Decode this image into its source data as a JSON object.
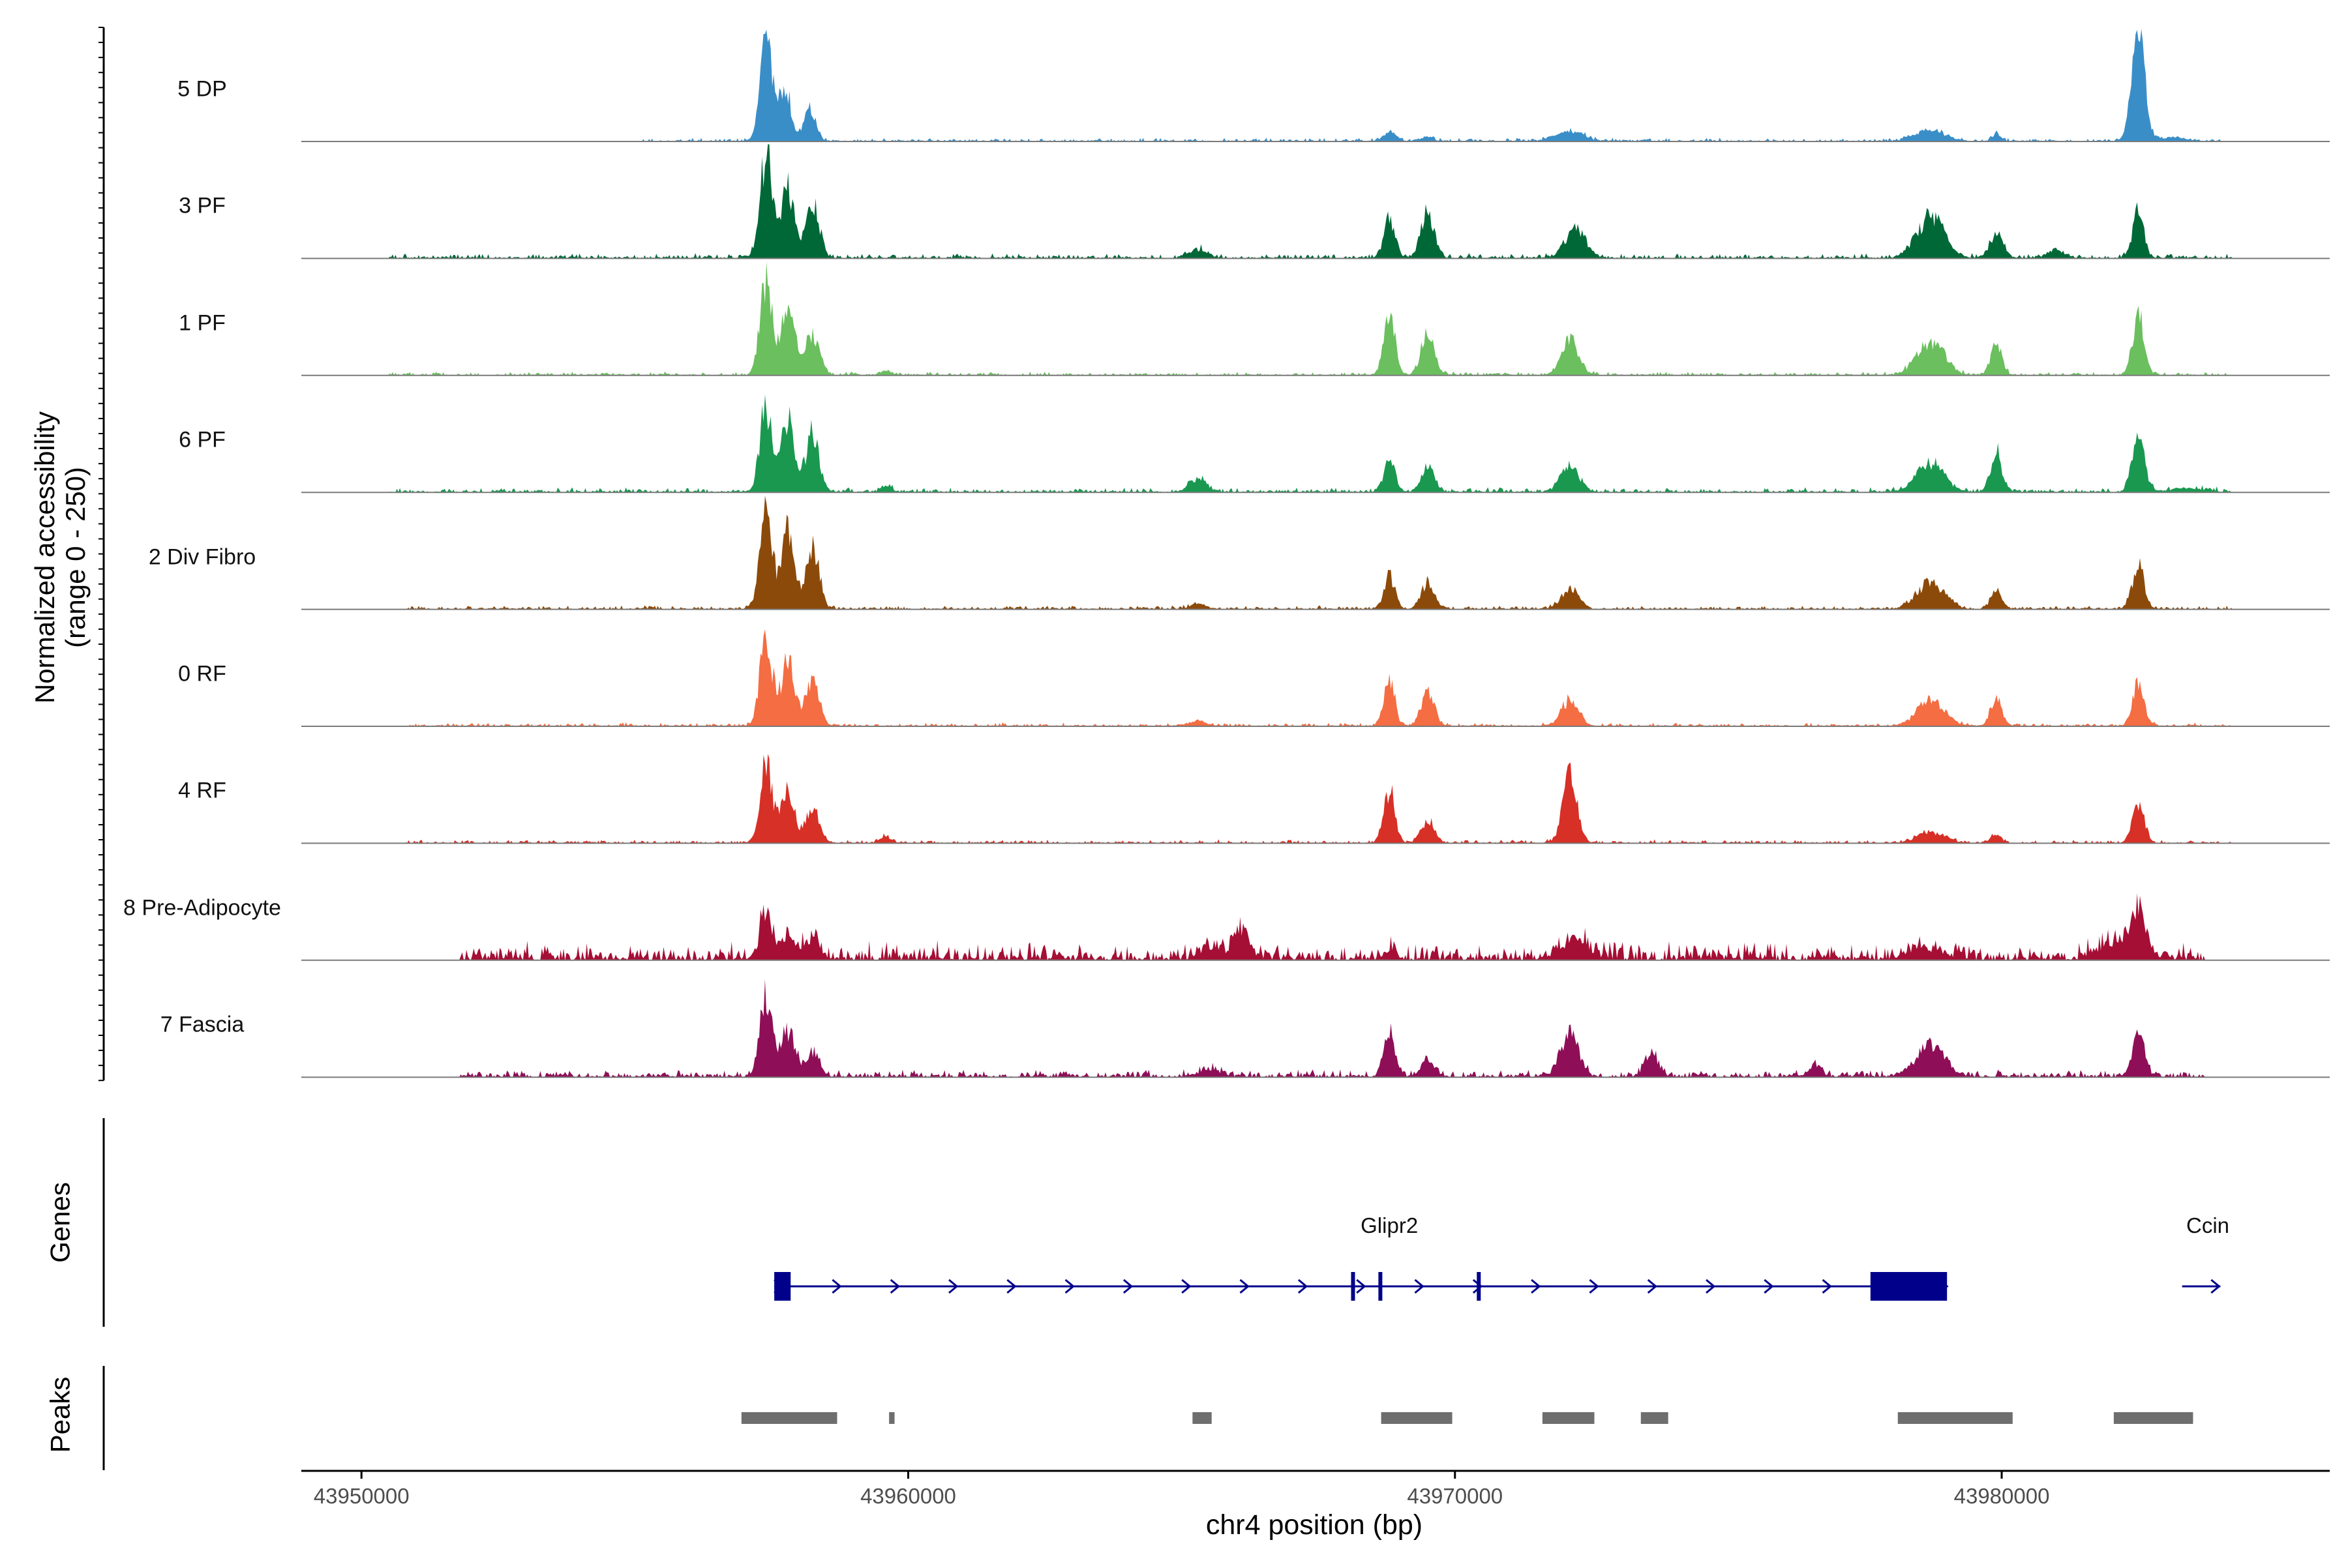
{
  "chart_data": {
    "type": "area",
    "title": "",
    "ylabel_line1": "Normalized accessibility",
    "ylabel_line2": "(range 0 - 250)",
    "ylim": [
      0,
      250
    ],
    "xlabel": "chr4 position (bp)",
    "xlim": [
      43948900,
      43986000
    ],
    "xticks": [
      43950000,
      43960000,
      43970000,
      43980000
    ],
    "xtick_labels": [
      "43950000",
      "43960000",
      "43970000",
      "43980000"
    ],
    "genes_label": "Genes",
    "peaks_label": "Peaks",
    "tracks": [
      {
        "name": "5 DP",
        "color": "#3A8EC8",
        "peaks": [
          [
            43957400,
            110,
            240
          ],
          [
            43957750,
            110,
            120
          ],
          [
            43958200,
            110,
            70
          ],
          [
            43968800,
            120,
            18
          ],
          [
            43969500,
            100,
            10
          ],
          [
            43972100,
            250,
            20
          ],
          [
            43978700,
            260,
            25
          ],
          [
            43979900,
            80,
            15
          ],
          [
            43982500,
            120,
            230
          ],
          [
            43983100,
            250,
            8
          ]
        ],
        "noise": [
          43955000,
          43984000,
          3,
          0
        ]
      },
      {
        "name": "3 PF",
        "color": "#006837",
        "peaks": [
          [
            43957400,
            110,
            235
          ],
          [
            43957800,
            120,
            160
          ],
          [
            43958250,
            120,
            120
          ],
          [
            43965300,
            150,
            20
          ],
          [
            43968800,
            100,
            90
          ],
          [
            43969500,
            120,
            100
          ],
          [
            43972200,
            180,
            70
          ],
          [
            43978700,
            250,
            90
          ],
          [
            43979900,
            120,
            55
          ],
          [
            43981000,
            150,
            15
          ],
          [
            43982500,
            100,
            105
          ]
        ],
        "noise": [
          43950500,
          43984200,
          4,
          1
        ]
      },
      {
        "name": "1 PF",
        "color": "#6BBF5E",
        "peaks": [
          [
            43957400,
            110,
            210
          ],
          [
            43957800,
            130,
            150
          ],
          [
            43958250,
            130,
            90
          ],
          [
            43959600,
            100,
            10
          ],
          [
            43968800,
            100,
            135
          ],
          [
            43969500,
            120,
            90
          ],
          [
            43972100,
            160,
            80
          ],
          [
            43978700,
            250,
            75
          ],
          [
            43979900,
            100,
            70
          ],
          [
            43982500,
            110,
            130
          ]
        ],
        "noise": [
          43950500,
          43984200,
          3,
          2
        ]
      },
      {
        "name": "6 PF",
        "color": "#1A9850",
        "peaks": [
          [
            43957400,
            110,
            190
          ],
          [
            43957800,
            120,
            160
          ],
          [
            43958250,
            120,
            130
          ],
          [
            43959600,
            100,
            12
          ],
          [
            43965300,
            150,
            30
          ],
          [
            43968800,
            100,
            70
          ],
          [
            43969500,
            120,
            55
          ],
          [
            43972100,
            160,
            60
          ],
          [
            43978700,
            250,
            65
          ],
          [
            43979900,
            100,
            90
          ],
          [
            43982500,
            110,
            130
          ],
          [
            43983400,
            300,
            8
          ]
        ],
        "noise": [
          43950500,
          43984200,
          4,
          3
        ]
      },
      {
        "name": "2 Div Fibro",
        "color": "#8C4A0A",
        "peaks": [
          [
            43957400,
            110,
            220
          ],
          [
            43957800,
            120,
            170
          ],
          [
            43958250,
            120,
            140
          ],
          [
            43965300,
            150,
            10
          ],
          [
            43968800,
            100,
            75
          ],
          [
            43969500,
            120,
            60
          ],
          [
            43972100,
            160,
            45
          ],
          [
            43978700,
            250,
            60
          ],
          [
            43979900,
            100,
            40
          ],
          [
            43982500,
            110,
            95
          ]
        ],
        "noise": [
          43950800,
          43984200,
          3,
          4
        ]
      },
      {
        "name": "0 RF",
        "color": "#F46D43",
        "peaks": [
          [
            43957400,
            110,
            205
          ],
          [
            43957800,
            120,
            150
          ],
          [
            43958250,
            120,
            110
          ],
          [
            43965300,
            150,
            12
          ],
          [
            43968800,
            100,
            95
          ],
          [
            43969500,
            120,
            75
          ],
          [
            43972100,
            160,
            55
          ],
          [
            43978700,
            250,
            55
          ],
          [
            43979900,
            100,
            65
          ],
          [
            43982500,
            110,
            90
          ]
        ],
        "noise": [
          43950800,
          43984200,
          3,
          5
        ]
      },
      {
        "name": "4 RF",
        "color": "#D73027",
        "peaks": [
          [
            43957400,
            110,
            185
          ],
          [
            43957800,
            120,
            125
          ],
          [
            43958250,
            120,
            80
          ],
          [
            43959600,
            100,
            12
          ],
          [
            43968800,
            100,
            120
          ],
          [
            43969500,
            120,
            50
          ],
          [
            43972100,
            130,
            150
          ],
          [
            43978700,
            250,
            25
          ],
          [
            43979900,
            100,
            18
          ],
          [
            43982500,
            110,
            85
          ]
        ],
        "noise": [
          43950800,
          43984200,
          3,
          6
        ]
      },
      {
        "name": "8 Pre-Adipocyte",
        "color": "#A50F35",
        "peaks": [
          [
            43957400,
            100,
            110
          ],
          [
            43957800,
            140,
            45
          ],
          [
            43958250,
            140,
            40
          ],
          [
            43966100,
            130,
            70
          ],
          [
            43965500,
            200,
            20
          ],
          [
            43968800,
            100,
            20
          ],
          [
            43972200,
            250,
            40
          ],
          [
            43978600,
            300,
            25
          ],
          [
            43982500,
            150,
            100
          ],
          [
            43982000,
            250,
            35
          ]
        ],
        "noise": [
          43951800,
          43983700,
          15,
          7
        ]
      },
      {
        "name": "7 Fascia",
        "color": "#8E0F57",
        "peaks": [
          [
            43957400,
            110,
            185
          ],
          [
            43957800,
            130,
            100
          ],
          [
            43958250,
            130,
            50
          ],
          [
            43965500,
            200,
            15
          ],
          [
            43968800,
            100,
            100
          ],
          [
            43969500,
            120,
            35
          ],
          [
            43972100,
            160,
            95
          ],
          [
            43973600,
            120,
            55
          ],
          [
            43976600,
            100,
            25
          ],
          [
            43978700,
            250,
            70
          ],
          [
            43982500,
            110,
            95
          ]
        ],
        "noise": [
          43951800,
          43983700,
          6,
          8
        ]
      }
    ],
    "genes": [
      {
        "name": "Glipr2",
        "color": "#00008B",
        "strand": "+",
        "start": 43957550,
        "end": 43979000,
        "exons": [
          [
            43957550,
            43957850
          ],
          [
            43968100,
            43968150
          ],
          [
            43968600,
            43968650
          ],
          [
            43970400,
            43970450
          ],
          [
            43977600,
            43979000
          ]
        ]
      },
      {
        "name": "Ccin",
        "color": "#00008B",
        "strand": "+",
        "start": 43983300,
        "end": 43984000,
        "exons": []
      }
    ],
    "peak_regions": [
      [
        43956950,
        43958700
      ],
      [
        43959650,
        43959750
      ],
      [
        43965200,
        43965550
      ],
      [
        43968650,
        43969950
      ],
      [
        43971600,
        43972550
      ],
      [
        43973400,
        43973900
      ],
      [
        43978100,
        43980200
      ],
      [
        43982050,
        43983500
      ]
    ],
    "peak_color": "#6E6E6E"
  }
}
